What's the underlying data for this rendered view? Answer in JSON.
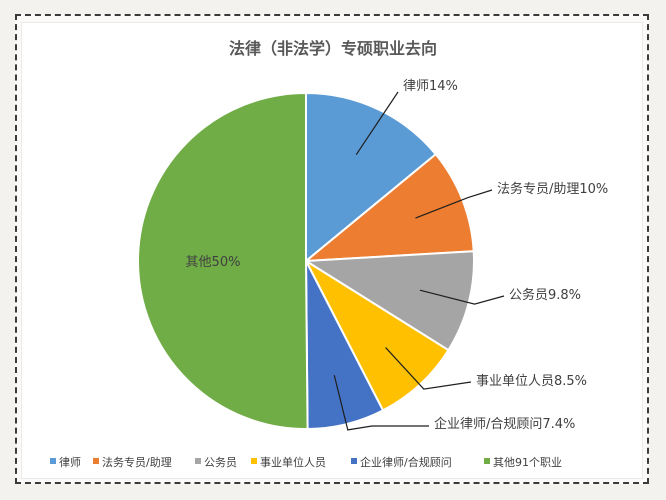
{
  "chart_data": {
    "type": "pie",
    "title": "法律（非法学）专硕职业去向",
    "slices": [
      {
        "category": "律师",
        "value": 14,
        "label": "律师14%",
        "color": "#5B9BD5"
      },
      {
        "category": "法务专员/助理",
        "value": 10,
        "label": "法务专员/助理10%",
        "color": "#ED7D31"
      },
      {
        "category": "公务员",
        "value": 9.8,
        "label": "公务员9.8%",
        "color": "#A5A5A5"
      },
      {
        "category": "事业单位人员",
        "value": 8.5,
        "label": "事业单位人员8.5%",
        "color": "#FFC000"
      },
      {
        "category": "企业律师/合规顾问",
        "value": 7.4,
        "label": "企业律师/合规顾问7.4%",
        "color": "#4472C4"
      },
      {
        "category": "其他91个职业",
        "value": 50,
        "label": "其他50%",
        "color": "#70AD47"
      }
    ],
    "legend": {
      "position": "bottom",
      "entries": [
        "律师",
        "法务专员/助理",
        "公务员",
        "事业单位人员",
        "企业律师/合规顾问",
        "其他91个职业"
      ]
    }
  }
}
